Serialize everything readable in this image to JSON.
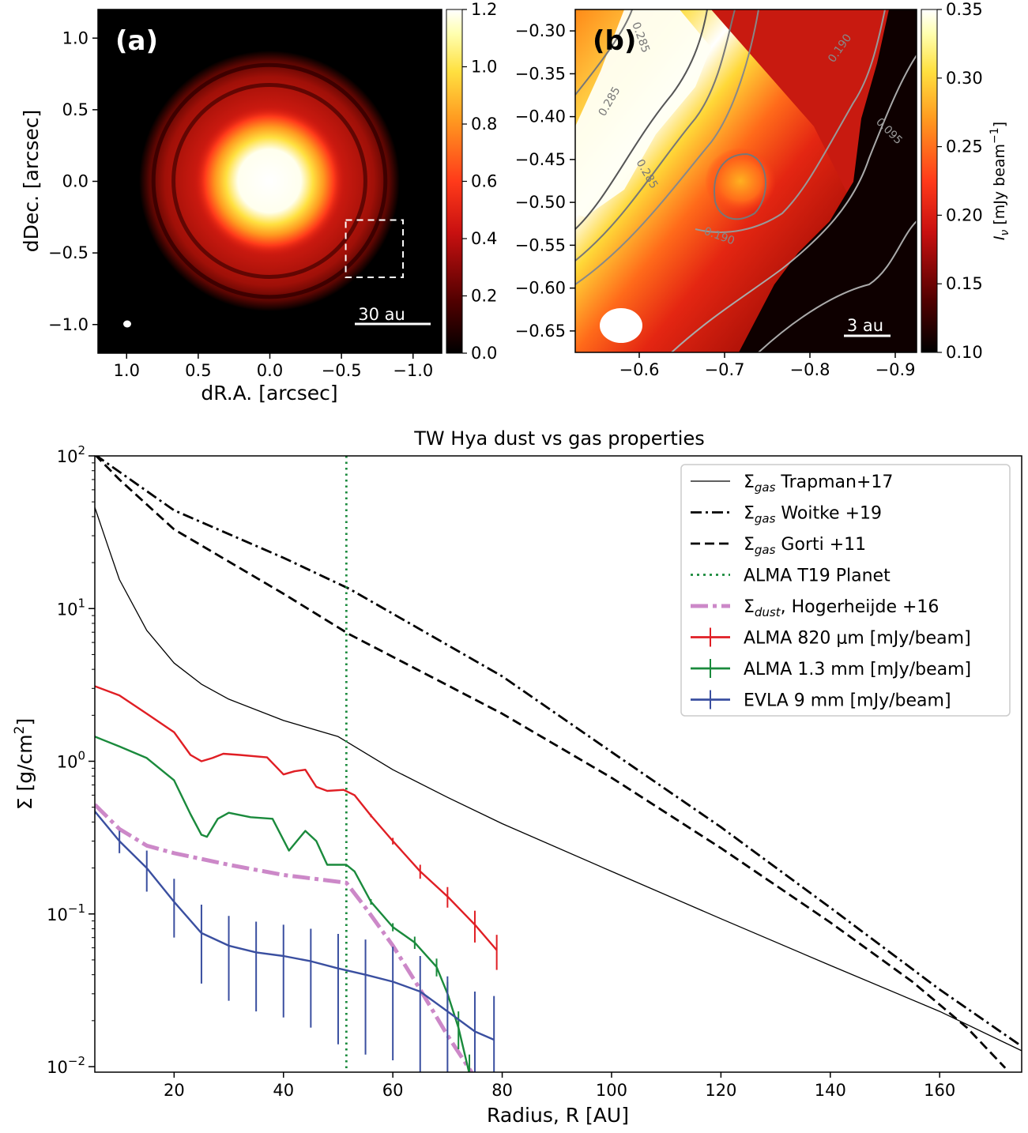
{
  "chart_data": [
    {
      "type": "heatmap",
      "panel_label": "(a)",
      "xlabel": "dR.A. [arcsec]",
      "ylabel": "dDec. [arcsec]",
      "x_ticks": [
        "1.0",
        "0.5",
        "0.0",
        "−0.5",
        "−1.0"
      ],
      "y_ticks": [
        "1.0",
        "0.5",
        "0.0",
        "−0.5",
        "−1.0"
      ],
      "xlim": [
        1.2,
        -1.2
      ],
      "ylim": [
        -1.2,
        1.2
      ],
      "colorbar_ticks": [
        "1.2",
        "1.0",
        "0.8",
        "0.6",
        "0.4",
        "0.2",
        "0.0"
      ],
      "colorbar_range": [
        0.0,
        1.2
      ],
      "scale_bar_label": "30 au",
      "zoom_box": {
        "ra": [
          -0.53,
          -0.93
        ],
        "dec": [
          -0.27,
          -0.67
        ]
      },
      "rings_arcsec": [
        0.42,
        0.67,
        0.81
      ],
      "colormap": [
        "#000000",
        "#5a0000",
        "#c81010",
        "#ff3a1a",
        "#ff9a20",
        "#ffe040",
        "#ffffd8",
        "#ffffff"
      ]
    },
    {
      "type": "heatmap",
      "panel_label": "(b)",
      "x_ticks": [
        "−0.6",
        "−0.7",
        "−0.8",
        "−0.9"
      ],
      "y_ticks": [
        "−0.30",
        "−0.35",
        "−0.40",
        "−0.45",
        "−0.50",
        "−0.55",
        "−0.60",
        "−0.65"
      ],
      "xlim": [
        -0.525,
        -0.925
      ],
      "ylim": [
        -0.675,
        -0.275
      ],
      "colorbar_ticks": [
        "0.35",
        "0.30",
        "0.25",
        "0.20",
        "0.15",
        "0.10"
      ],
      "colorbar_range": [
        0.1,
        0.35
      ],
      "colorbar_label": "I_ν [mJy beam^−1]",
      "colorbar_label_parts": {
        "main": "I",
        "sub": "ν",
        "unit": " [mJy beam",
        "sup": "−1",
        "close": "]"
      },
      "contour_labels": [
        "0.285",
        "0.285",
        "0.285",
        "0.190",
        "0.190",
        "0.095"
      ],
      "scale_bar_label": "3 au"
    },
    {
      "type": "line",
      "title": "TW Hya dust vs gas properties",
      "xlabel": "Radius, R [AU]",
      "ylabel": "Σ [g/cm2]",
      "ylabel_parts": {
        "main": "Σ [g/cm",
        "sup": "2",
        "close": "]"
      },
      "x_ticks": [
        20,
        40,
        60,
        80,
        100,
        120,
        140,
        160
      ],
      "y_ticks": [
        {
          "value": 100,
          "base": "10",
          "exp": "2"
        },
        {
          "value": 10,
          "base": "10",
          "exp": "1"
        },
        {
          "value": 1,
          "base": "10",
          "exp": "0"
        },
        {
          "value": 0.1,
          "base": "10",
          "exp": "−1"
        },
        {
          "value": 0.01,
          "base": "10",
          "exp": "−2"
        }
      ],
      "xlim": [
        5.5,
        175
      ],
      "ylim": [
        0.0092,
        100
      ],
      "yscale": "log",
      "legend_position": "upper right",
      "planet_radius": 51.5,
      "series": [
        {
          "name": "Σgas Trapman+17",
          "sym": "Σ",
          "sub": "gas",
          "rest": " Trapman+17",
          "style": "solid",
          "color": "#000000",
          "x": [
            5.5,
            8,
            10,
            15,
            20,
            25,
            30,
            40,
            50,
            60,
            70,
            80,
            100,
            120,
            140,
            160,
            175
          ],
          "y": [
            46,
            25,
            15.5,
            7.2,
            4.4,
            3.2,
            2.55,
            1.85,
            1.45,
            0.88,
            0.58,
            0.39,
            0.19,
            0.093,
            0.046,
            0.023,
            0.0127
          ]
        },
        {
          "name": "Σgas Woitke +19",
          "sym": "Σ",
          "sub": "gas",
          "rest": " Woitke +19",
          "style": "dashdot",
          "color": "#000000",
          "x": [
            5.5,
            20,
            40,
            52,
            80,
            100,
            120,
            140,
            160,
            175
          ],
          "y": [
            102,
            44,
            21.5,
            13.5,
            3.6,
            1.15,
            0.37,
            0.11,
            0.032,
            0.0136
          ]
        },
        {
          "name": "Σgas Gorti +11",
          "sym": "Σ",
          "sub": "gas",
          "rest": " Gorti +11",
          "style": "dashed",
          "color": "#000000",
          "x": [
            5.5,
            10,
            20,
            40,
            52,
            80,
            100,
            120,
            140,
            155,
            165,
            172
          ],
          "y": [
            102,
            70,
            33,
            12.5,
            6.8,
            2.05,
            0.78,
            0.27,
            0.088,
            0.036,
            0.018,
            0.0098
          ]
        },
        {
          "name": "ALMA T19 Planet",
          "style": "dotted",
          "color": "#1a8a3c",
          "x": [
            51.5,
            51.5
          ],
          "y": [
            0.0092,
            100
          ]
        },
        {
          "name": "Σdust, Hogerheijde +16",
          "sym": "Σ",
          "sub": "dust",
          "rest": ", Hogerheijde +16",
          "style": "longdash",
          "color": "#cc88c8",
          "x": [
            5.5,
            10,
            15,
            20,
            30,
            40,
            51.5,
            55,
            60,
            65,
            70,
            75
          ],
          "y": [
            0.52,
            0.36,
            0.28,
            0.25,
            0.21,
            0.18,
            0.16,
            0.11,
            0.062,
            0.032,
            0.016,
            0.0085
          ]
        },
        {
          "name": "ALMA 820 μm [mJy/beam]",
          "style": "solid",
          "color": "#e01e24",
          "errorbars": true,
          "x": [
            5.5,
            10,
            15,
            20,
            23,
            25,
            27,
            29,
            32,
            37,
            40,
            42,
            44,
            46,
            48,
            51,
            53,
            56,
            60,
            65,
            70,
            75,
            79
          ],
          "y": [
            3.1,
            2.7,
            2.05,
            1.55,
            1.1,
            1.0,
            1.05,
            1.12,
            1.1,
            1.06,
            0.82,
            0.86,
            0.88,
            0.68,
            0.64,
            0.65,
            0.6,
            0.44,
            0.3,
            0.19,
            0.13,
            0.085,
            0.058
          ],
          "err": [
            0,
            0,
            0,
            0,
            0,
            0,
            0,
            0,
            0,
            0,
            0,
            0,
            0,
            0,
            0,
            0,
            0,
            0.01,
            0.015,
            0.02,
            0.02,
            0.02,
            0.015
          ]
        },
        {
          "name": "ALMA 1.3 mm [mJy/beam]",
          "style": "solid",
          "color": "#1a8a3c",
          "errorbars": true,
          "x": [
            5.5,
            10,
            15,
            20,
            23,
            25,
            26,
            28,
            30,
            34,
            38,
            41,
            44,
            46,
            48,
            51.5,
            53,
            56,
            60,
            64,
            68,
            70,
            72,
            74
          ],
          "y": [
            1.45,
            1.25,
            1.05,
            0.75,
            0.45,
            0.33,
            0.32,
            0.42,
            0.46,
            0.43,
            0.42,
            0.26,
            0.35,
            0.3,
            0.21,
            0.21,
            0.19,
            0.12,
            0.082,
            0.065,
            0.045,
            0.03,
            0.018,
            0.009
          ],
          "err": [
            0,
            0,
            0,
            0,
            0,
            0,
            0,
            0,
            0,
            0,
            0,
            0,
            0,
            0,
            0,
            0,
            0,
            0.005,
            0.005,
            0.006,
            0.006,
            0.006,
            0.005,
            0.003
          ]
        },
        {
          "name": "EVLA 9 mm [mJy/beam]",
          "style": "solid",
          "color": "#3a4fa0",
          "errorbars": true,
          "x": [
            5.5,
            10,
            15,
            20,
            25,
            30,
            35,
            40,
            45,
            50,
            55,
            60,
            65,
            70,
            75,
            78.5
          ],
          "y": [
            0.47,
            0.3,
            0.2,
            0.12,
            0.075,
            0.062,
            0.056,
            0.053,
            0.049,
            0.044,
            0.04,
            0.036,
            0.031,
            0.023,
            0.017,
            0.015
          ],
          "err": [
            0.02,
            0.05,
            0.06,
            0.05,
            0.04,
            0.035,
            0.033,
            0.032,
            0.031,
            0.03,
            0.028,
            0.025,
            0.022,
            0.016,
            0.014,
            0.014
          ]
        }
      ]
    }
  ]
}
